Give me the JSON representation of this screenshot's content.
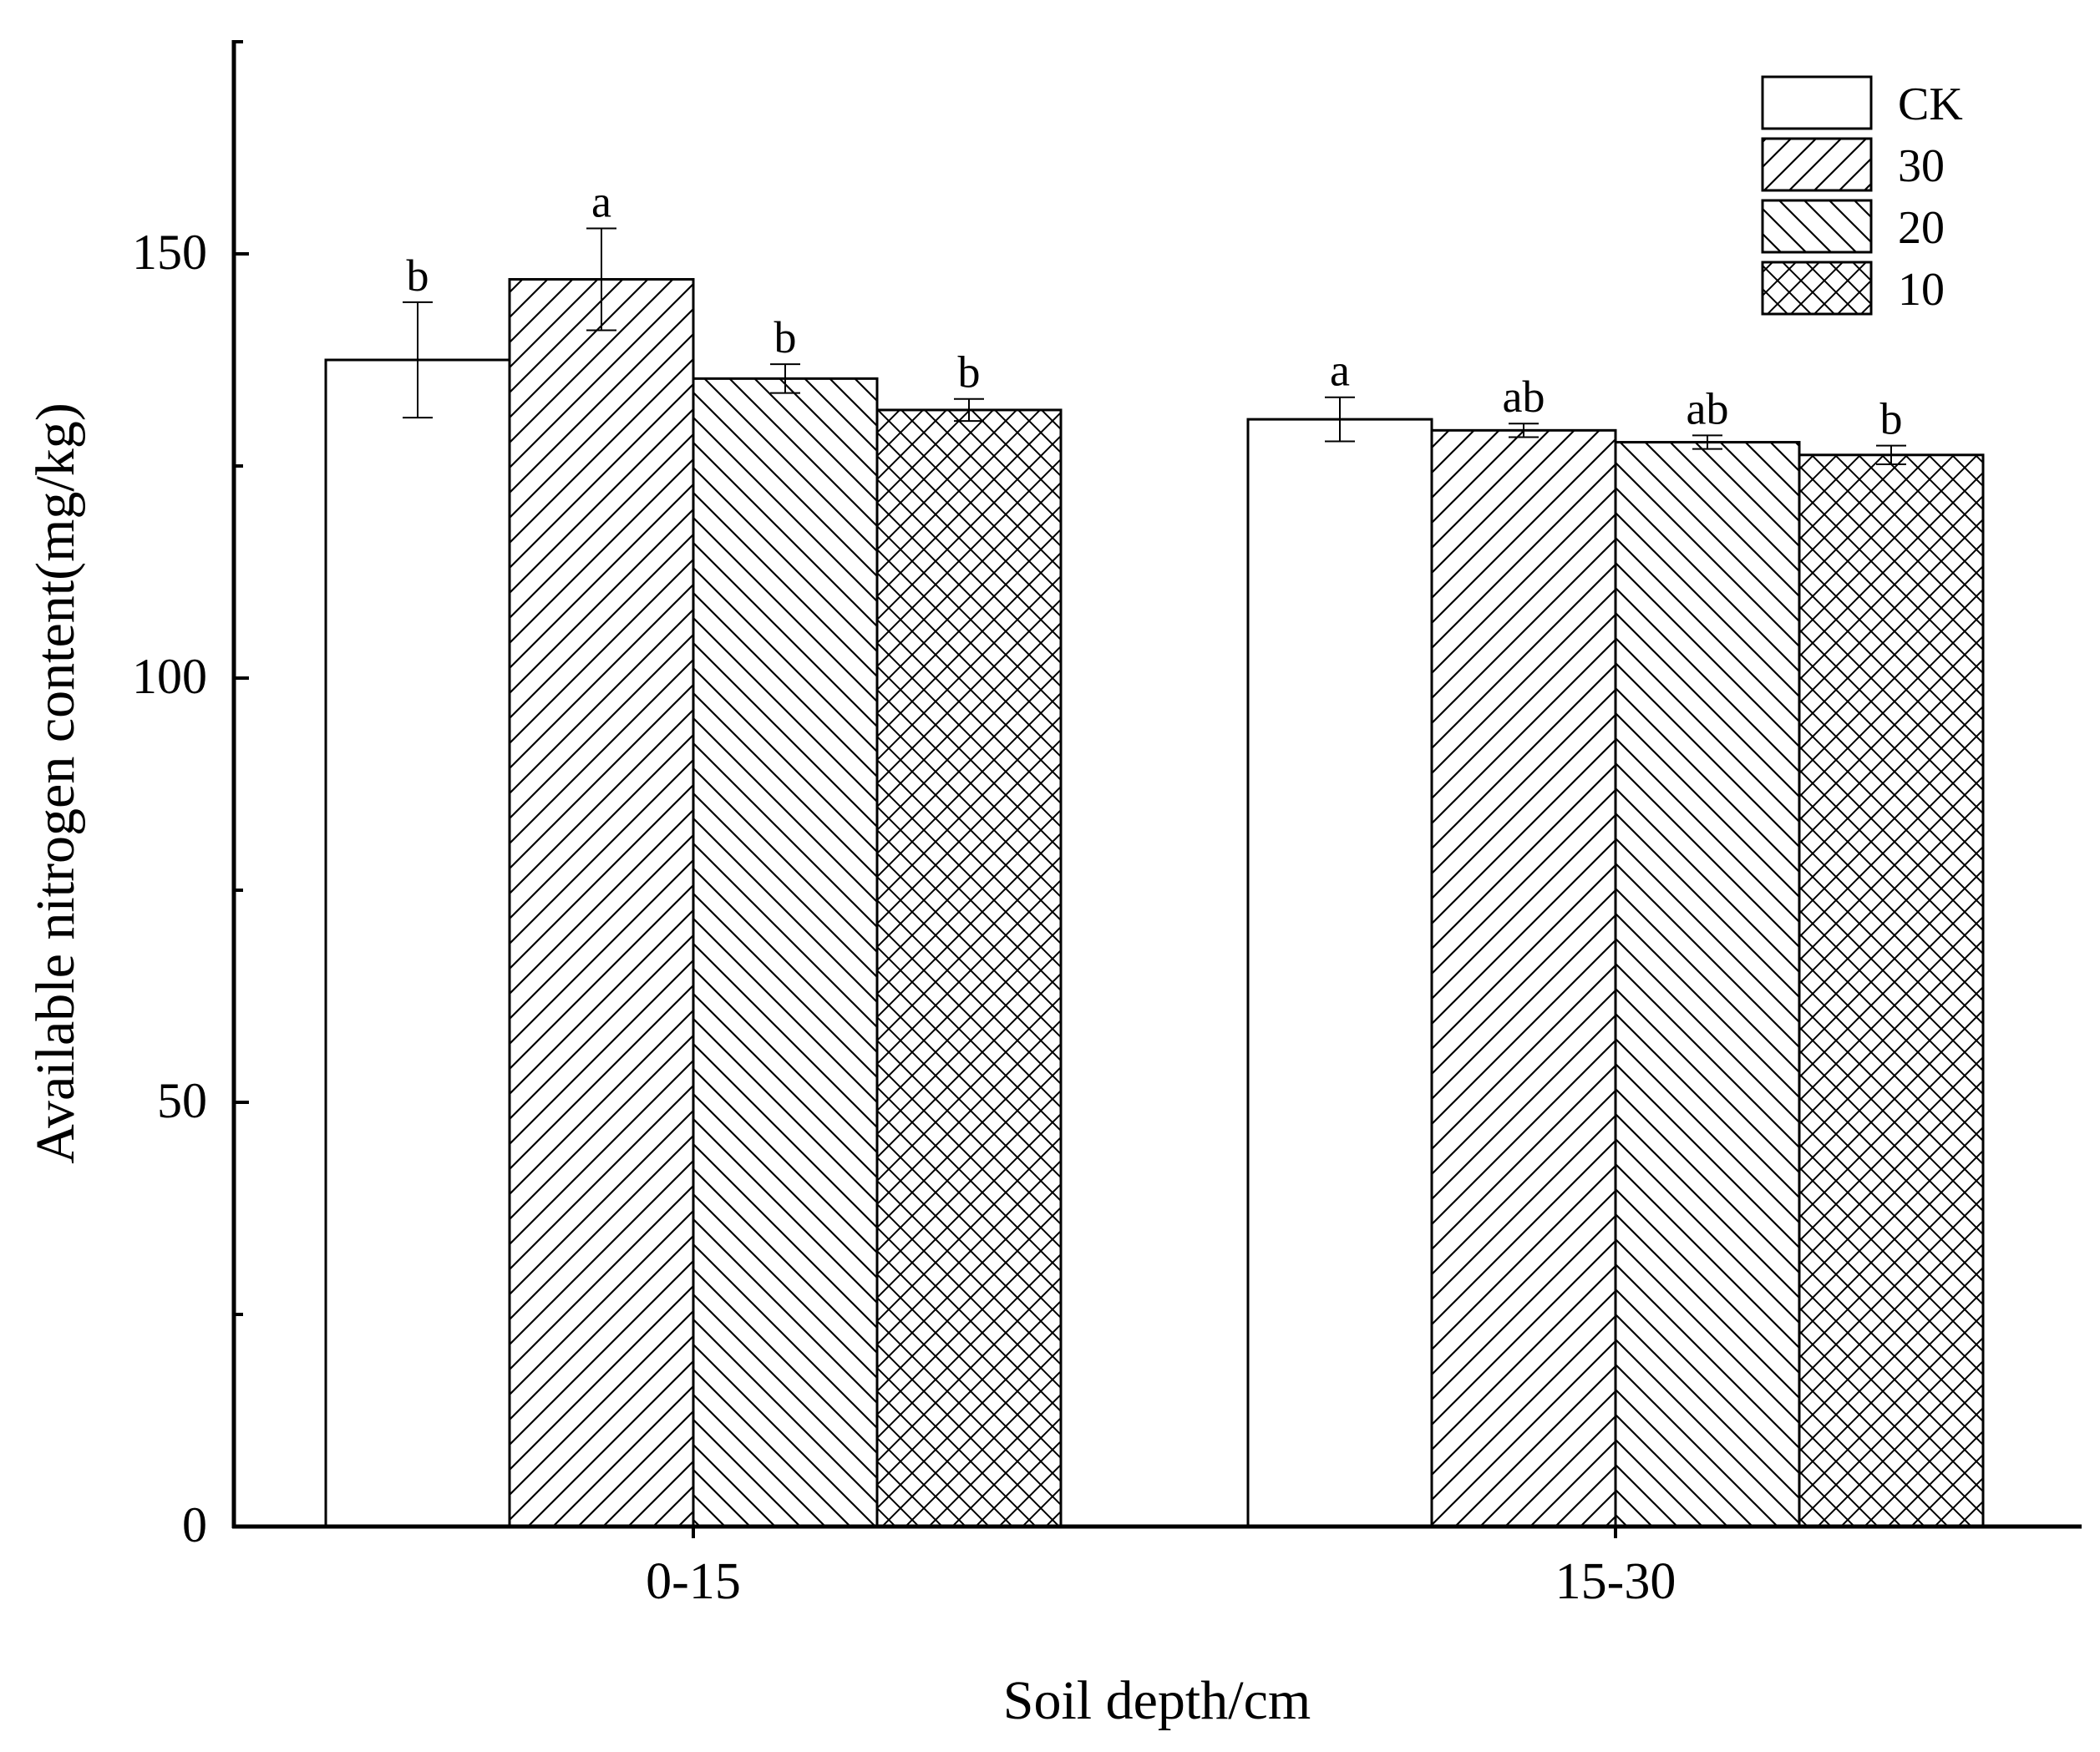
{
  "chart_data": {
    "type": "bar",
    "title": "",
    "xlabel": "Soil depth/cm",
    "ylabel": "Available nitrogen content(mg/kg)",
    "categories": [
      "0-15",
      "15-30"
    ],
    "ylim": [
      0,
      175
    ],
    "yticks": [
      0,
      50,
      100,
      150
    ],
    "grid": false,
    "legend_position": "top-right",
    "series": [
      {
        "name": "CK",
        "pattern": "none",
        "values": [
          137.5,
          130.5
        ],
        "errors": [
          6.8,
          2.6
        ],
        "labels": [
          "b",
          "a"
        ]
      },
      {
        "name": "30",
        "pattern": "diagonal-up",
        "values": [
          147.0,
          129.2
        ],
        "errors": [
          6.0,
          0.8
        ],
        "labels": [
          "a",
          "ab"
        ]
      },
      {
        "name": "20",
        "pattern": "diagonal-down",
        "values": [
          135.3,
          127.8
        ],
        "errors": [
          1.7,
          0.8
        ],
        "labels": [
          "b",
          "ab"
        ]
      },
      {
        "name": "10",
        "pattern": "crosshatch",
        "values": [
          131.6,
          126.3
        ],
        "errors": [
          1.3,
          1.1
        ],
        "labels": [
          "b",
          "b"
        ]
      }
    ],
    "colors": {
      "bar_fill": "#ffffff",
      "stroke": "#000000",
      "background": "#ffffff"
    }
  }
}
